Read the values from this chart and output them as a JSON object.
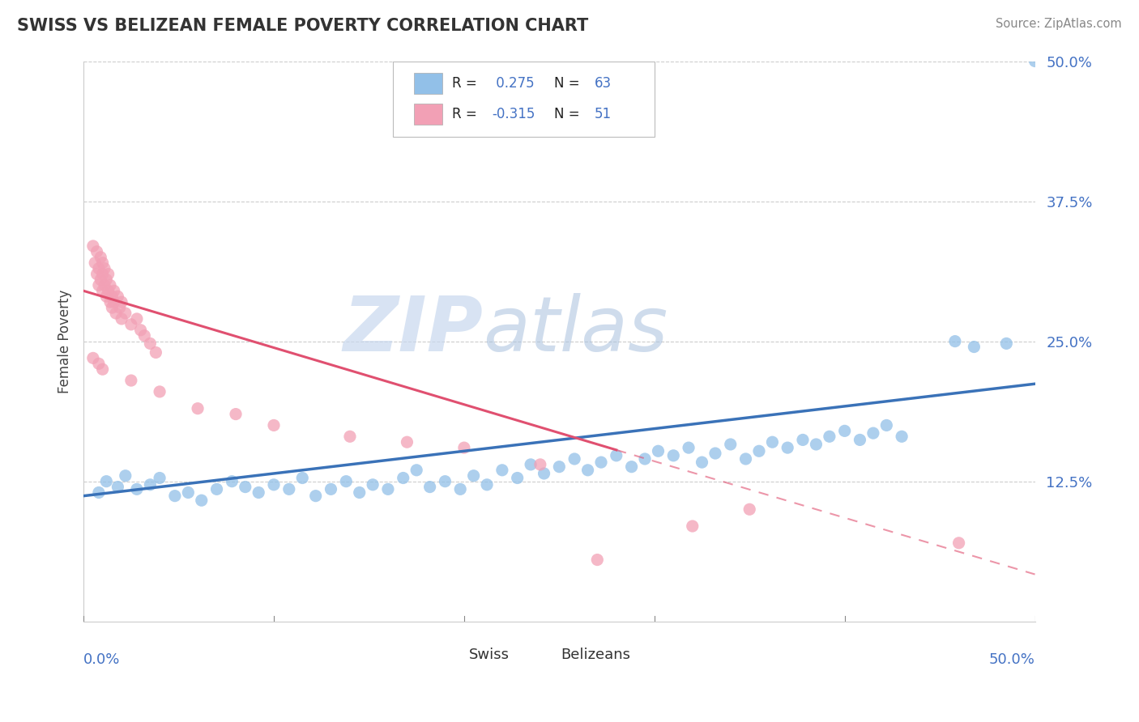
{
  "title": "SWISS VS BELIZEAN FEMALE POVERTY CORRELATION CHART",
  "source": "Source: ZipAtlas.com",
  "ylabel": "Female Poverty",
  "xlim": [
    0.0,
    0.5
  ],
  "ylim": [
    0.0,
    0.5
  ],
  "ytick_vals": [
    0.125,
    0.25,
    0.375,
    0.5
  ],
  "ytick_labels": [
    "12.5%",
    "25.0%",
    "37.5%",
    "50.0%"
  ],
  "swiss_R": 0.275,
  "swiss_N": 63,
  "belizean_R": -0.315,
  "belizean_N": 51,
  "swiss_color": "#92C0E8",
  "belizean_color": "#F2A0B5",
  "swiss_line_color": "#3A72B8",
  "belizean_line_color": "#E05070",
  "tick_color": "#4472C4",
  "watermark_color": "#D0DFF0",
  "background_color": "#FFFFFF",
  "swiss_points": [
    [
      0.008,
      0.115
    ],
    [
      0.012,
      0.125
    ],
    [
      0.018,
      0.12
    ],
    [
      0.022,
      0.13
    ],
    [
      0.028,
      0.118
    ],
    [
      0.035,
      0.122
    ],
    [
      0.04,
      0.128
    ],
    [
      0.048,
      0.112
    ],
    [
      0.055,
      0.115
    ],
    [
      0.062,
      0.108
    ],
    [
      0.07,
      0.118
    ],
    [
      0.078,
      0.125
    ],
    [
      0.085,
      0.12
    ],
    [
      0.092,
      0.115
    ],
    [
      0.1,
      0.122
    ],
    [
      0.108,
      0.118
    ],
    [
      0.115,
      0.128
    ],
    [
      0.122,
      0.112
    ],
    [
      0.13,
      0.118
    ],
    [
      0.138,
      0.125
    ],
    [
      0.145,
      0.115
    ],
    [
      0.152,
      0.122
    ],
    [
      0.16,
      0.118
    ],
    [
      0.168,
      0.128
    ],
    [
      0.175,
      0.135
    ],
    [
      0.182,
      0.12
    ],
    [
      0.19,
      0.125
    ],
    [
      0.198,
      0.118
    ],
    [
      0.205,
      0.13
    ],
    [
      0.212,
      0.122
    ],
    [
      0.22,
      0.135
    ],
    [
      0.228,
      0.128
    ],
    [
      0.235,
      0.14
    ],
    [
      0.242,
      0.132
    ],
    [
      0.25,
      0.138
    ],
    [
      0.258,
      0.145
    ],
    [
      0.265,
      0.135
    ],
    [
      0.272,
      0.142
    ],
    [
      0.28,
      0.148
    ],
    [
      0.288,
      0.138
    ],
    [
      0.295,
      0.145
    ],
    [
      0.302,
      0.152
    ],
    [
      0.31,
      0.148
    ],
    [
      0.318,
      0.155
    ],
    [
      0.325,
      0.142
    ],
    [
      0.332,
      0.15
    ],
    [
      0.34,
      0.158
    ],
    [
      0.348,
      0.145
    ],
    [
      0.355,
      0.152
    ],
    [
      0.362,
      0.16
    ],
    [
      0.37,
      0.155
    ],
    [
      0.378,
      0.162
    ],
    [
      0.385,
      0.158
    ],
    [
      0.392,
      0.165
    ],
    [
      0.4,
      0.17
    ],
    [
      0.408,
      0.162
    ],
    [
      0.415,
      0.168
    ],
    [
      0.422,
      0.175
    ],
    [
      0.43,
      0.165
    ],
    [
      0.458,
      0.25
    ],
    [
      0.468,
      0.245
    ],
    [
      0.485,
      0.248
    ],
    [
      0.5,
      0.5
    ]
  ],
  "belizean_points": [
    [
      0.005,
      0.335
    ],
    [
      0.006,
      0.32
    ],
    [
      0.007,
      0.31
    ],
    [
      0.007,
      0.33
    ],
    [
      0.008,
      0.3
    ],
    [
      0.008,
      0.315
    ],
    [
      0.009,
      0.305
    ],
    [
      0.009,
      0.325
    ],
    [
      0.01,
      0.295
    ],
    [
      0.01,
      0.31
    ],
    [
      0.01,
      0.32
    ],
    [
      0.011,
      0.3
    ],
    [
      0.011,
      0.315
    ],
    [
      0.012,
      0.29
    ],
    [
      0.012,
      0.305
    ],
    [
      0.013,
      0.295
    ],
    [
      0.013,
      0.31
    ],
    [
      0.014,
      0.285
    ],
    [
      0.014,
      0.3
    ],
    [
      0.015,
      0.29
    ],
    [
      0.015,
      0.28
    ],
    [
      0.016,
      0.295
    ],
    [
      0.016,
      0.285
    ],
    [
      0.017,
      0.275
    ],
    [
      0.018,
      0.29
    ],
    [
      0.019,
      0.28
    ],
    [
      0.02,
      0.285
    ],
    [
      0.02,
      0.27
    ],
    [
      0.022,
      0.275
    ],
    [
      0.025,
      0.265
    ],
    [
      0.028,
      0.27
    ],
    [
      0.03,
      0.26
    ],
    [
      0.032,
      0.255
    ],
    [
      0.035,
      0.248
    ],
    [
      0.038,
      0.24
    ],
    [
      0.005,
      0.235
    ],
    [
      0.008,
      0.23
    ],
    [
      0.01,
      0.225
    ],
    [
      0.025,
      0.215
    ],
    [
      0.04,
      0.205
    ],
    [
      0.06,
      0.19
    ],
    [
      0.08,
      0.185
    ],
    [
      0.1,
      0.175
    ],
    [
      0.14,
      0.165
    ],
    [
      0.17,
      0.16
    ],
    [
      0.2,
      0.155
    ],
    [
      0.24,
      0.14
    ],
    [
      0.27,
      0.055
    ],
    [
      0.32,
      0.085
    ],
    [
      0.35,
      0.1
    ],
    [
      0.46,
      0.07
    ]
  ],
  "swiss_line": [
    [
      0.0,
      0.112
    ],
    [
      0.5,
      0.212
    ]
  ],
  "belizean_line_solid": [
    [
      0.0,
      0.295
    ],
    [
      0.28,
      0.153
    ]
  ],
  "belizean_line_dashed": [
    [
      0.28,
      0.153
    ],
    [
      0.5,
      0.042
    ]
  ]
}
